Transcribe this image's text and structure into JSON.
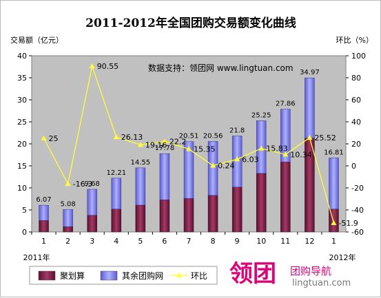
{
  "chart_data": {
    "type": "bar+line",
    "title": "2011-2012年全国团购交易额变化曲线",
    "ylabel_left": "交易额（亿元）",
    "ylabel_right": "环比（%）",
    "categories": [
      "1",
      "2",
      "3",
      "4",
      "5",
      "6",
      "7",
      "8",
      "9",
      "10",
      "11",
      "12",
      "1"
    ],
    "year_labels": [
      "2011年",
      "2012年"
    ],
    "ylim_left": [
      0,
      40
    ],
    "ylim_right": [
      -60,
      100
    ],
    "left_ticks": [
      "0",
      "5",
      "10",
      "15",
      "20",
      "25",
      "30",
      "35",
      "40"
    ],
    "right_ticks": [
      "-60",
      "-40",
      "-20",
      "0",
      "20",
      "40",
      "60",
      "80",
      "100"
    ],
    "stacked": true,
    "series": [
      {
        "name": "聚划算",
        "kind": "bar",
        "color": "#7a1f45",
        "values": [
          2.6,
          1.2,
          3.8,
          5.2,
          6.1,
          7.3,
          7.6,
          8.3,
          10.2,
          13.3,
          15.9,
          21.3,
          5.2
        ]
      },
      {
        "name": "其余团购网",
        "kind": "bar",
        "color": "#8e8ee8",
        "values": [
          3.47,
          3.88,
          5.88,
          7.01,
          8.45,
          10.48,
          12.91,
          12.26,
          11.6,
          11.95,
          11.96,
          13.67,
          11.61
        ]
      },
      {
        "name": "环比",
        "kind": "line",
        "axis": "right",
        "color": "#ffff33",
        "values": [
          25,
          -16.3,
          90.55,
          26.13,
          19.16,
          22.2,
          15.35,
          0.24,
          6.03,
          15.83,
          10.34,
          25.52,
          -51.9
        ]
      }
    ],
    "total_labels": [
      "6.07",
      "5.08",
      "9.68",
      "12.21",
      "14.55",
      "17.78",
      "20.51",
      "20.56",
      "21.8",
      "25.25",
      "27.86",
      "34.97",
      "16.81"
    ],
    "pct_labels": [
      "25",
      "-16.3",
      "90.55",
      "26.13",
      "19.16",
      "22.2",
      "15.35",
      "0.24",
      "6.03",
      "15.83",
      "10.34",
      "25.52",
      "-51.9"
    ],
    "watermark": "数据支持：领团网 www.lingtuan.com",
    "legend": {
      "position": "bottom-left"
    },
    "grid": false
  },
  "logo": {
    "big": "领团",
    "small": "团购导航",
    "url": "lingtuan.com"
  }
}
